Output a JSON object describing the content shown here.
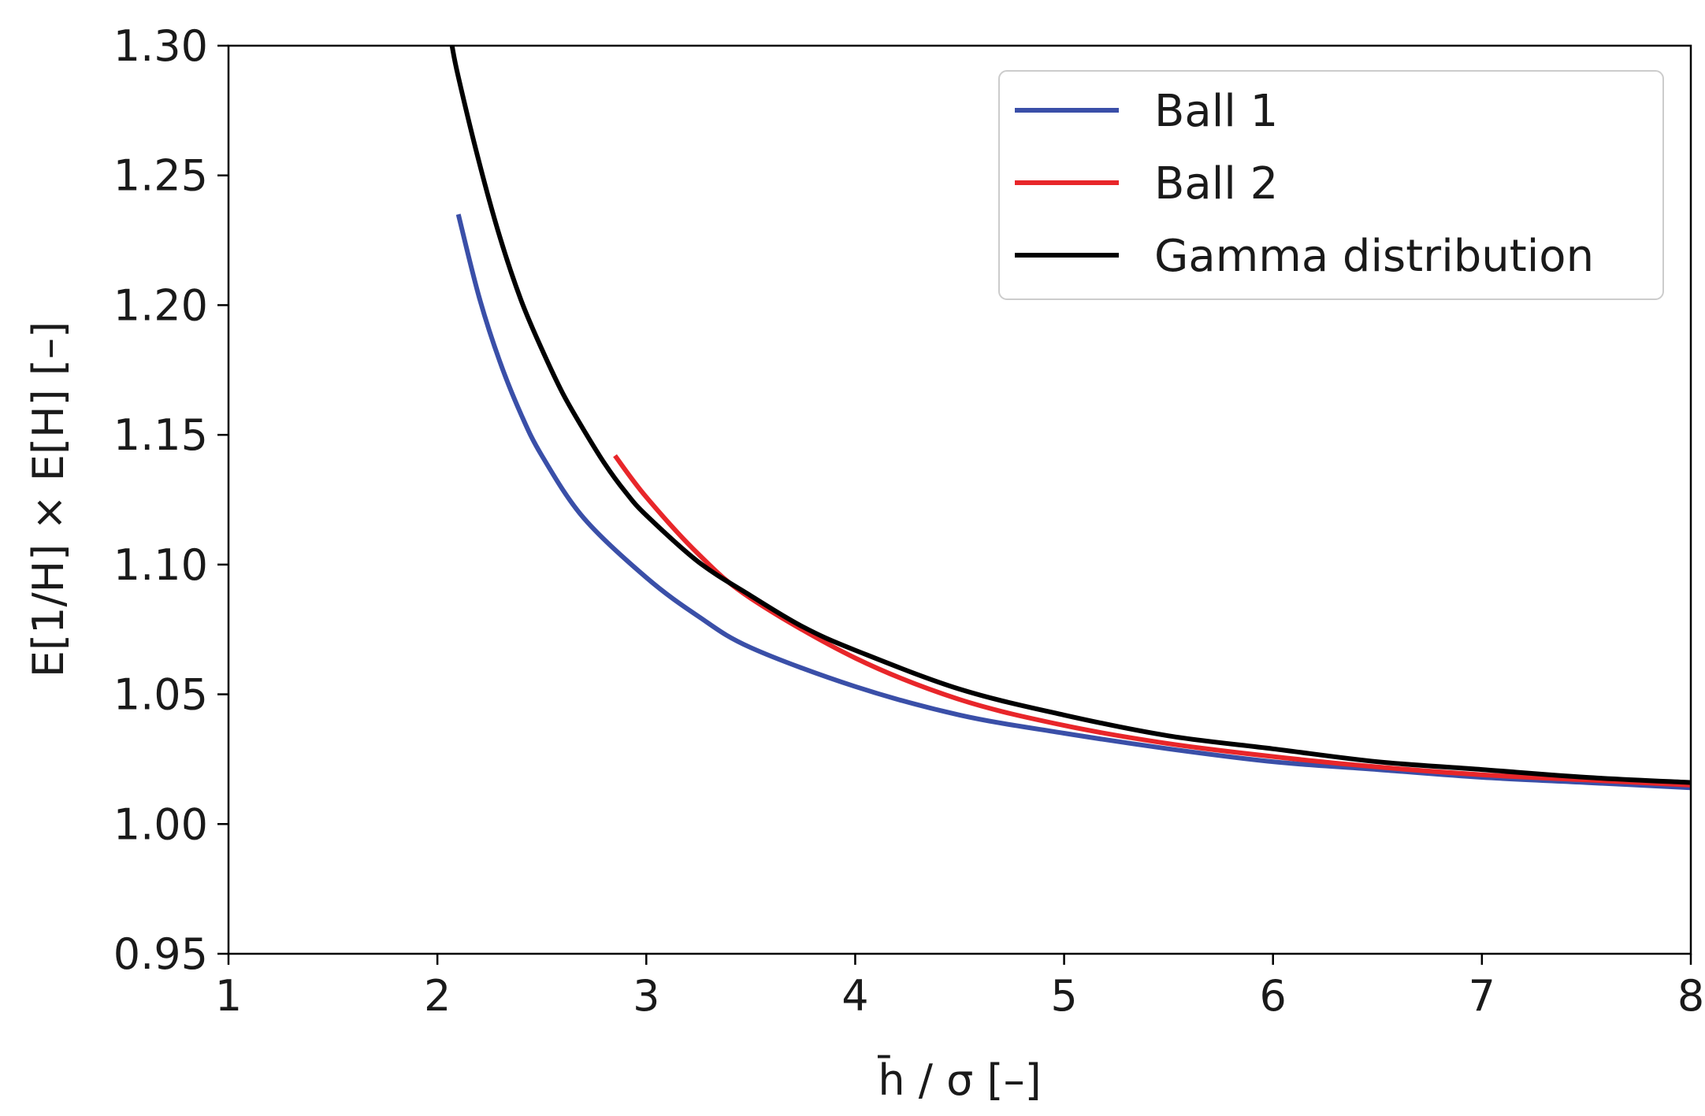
{
  "chart_data": {
    "type": "line",
    "title": "",
    "xlabel": "h̄ / σ [–]",
    "ylabel": "E[1/H] × E[H] [–]",
    "xlim": [
      1,
      8
    ],
    "ylim": [
      0.95,
      1.3
    ],
    "xticks": [
      1,
      2,
      3,
      4,
      5,
      6,
      7,
      8
    ],
    "xtick_labels": [
      "1",
      "2",
      "3",
      "4",
      "5",
      "6",
      "7",
      "8"
    ],
    "yticks": [
      0.95,
      1.0,
      1.05,
      1.1,
      1.15,
      1.2,
      1.25,
      1.3
    ],
    "ytick_labels": [
      "0.95",
      "1.00",
      "1.05",
      "1.10",
      "1.15",
      "1.20",
      "1.25",
      "1.30"
    ],
    "grid": false,
    "legend_position": "top-right",
    "series": [
      {
        "name": "Ball 1",
        "color": "#3a4fa8",
        "x": [
          2.1,
          2.2,
          2.3,
          2.4,
          2.5,
          2.7,
          3.0,
          3.25,
          3.5,
          4.0,
          4.5,
          5.0,
          5.5,
          6.0,
          6.5,
          7.0,
          7.5,
          8.0
        ],
        "y": [
          1.235,
          1.203,
          1.178,
          1.158,
          1.142,
          1.118,
          1.095,
          1.08,
          1.068,
          1.053,
          1.042,
          1.035,
          1.029,
          1.024,
          1.021,
          1.018,
          1.016,
          1.014
        ]
      },
      {
        "name": "Ball 2",
        "color": "#e8262a",
        "x": [
          2.85,
          3.0,
          3.25,
          3.5,
          4.0,
          4.5,
          5.0,
          5.5,
          6.0,
          6.5,
          7.0,
          7.5,
          8.0
        ],
        "y": [
          1.142,
          1.126,
          1.104,
          1.087,
          1.064,
          1.048,
          1.038,
          1.031,
          1.026,
          1.022,
          1.019,
          1.017,
          1.015
        ]
      },
      {
        "name": "Gamma distribution",
        "color": "#000000",
        "x": [
          2.07,
          2.1,
          2.2,
          2.3,
          2.4,
          2.5,
          2.6,
          2.7,
          2.8,
          2.9,
          3.0,
          3.25,
          3.5,
          3.75,
          4.0,
          4.5,
          5.0,
          5.5,
          6.0,
          6.5,
          7.0,
          7.5,
          8.0
        ],
        "y": [
          1.3,
          1.288,
          1.255,
          1.226,
          1.202,
          1.183,
          1.166,
          1.152,
          1.139,
          1.128,
          1.119,
          1.101,
          1.088,
          1.076,
          1.067,
          1.052,
          1.042,
          1.034,
          1.029,
          1.024,
          1.021,
          1.018,
          1.016
        ]
      }
    ]
  }
}
